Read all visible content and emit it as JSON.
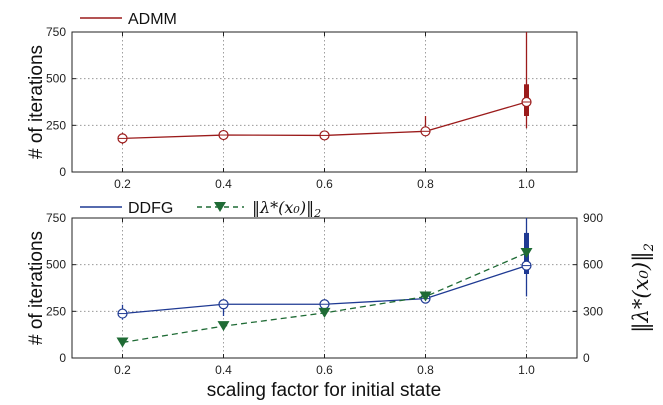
{
  "chart_data": [
    {
      "type": "line",
      "xlabel": "",
      "ylabel": "# of iterations",
      "x": [
        0.2,
        0.4,
        0.6,
        0.8,
        1.0
      ],
      "xtick_labels": [
        "0.2",
        "0.4",
        "0.6",
        "0.8",
        "1.0"
      ],
      "yticks": [
        0,
        250,
        500,
        750
      ],
      "ytick_labels": [
        "0",
        "250",
        "500",
        "750"
      ],
      "ylim": [
        0,
        750
      ],
      "xlim": [
        0.1,
        1.1
      ],
      "grid": true,
      "legend_position": "top-left",
      "series": [
        {
          "name": "ADMM",
          "color": "#9b1b1b",
          "values": [
            180,
            198,
            196,
            218,
            375
          ],
          "whisker_low": [
            150,
            170,
            175,
            190,
            235
          ],
          "whisker_high": [
            210,
            225,
            218,
            300,
            750
          ],
          "box_low": [
            178,
            196,
            194,
            212,
            300
          ],
          "box_high": [
            182,
            200,
            198,
            224,
            470
          ]
        }
      ]
    },
    {
      "type": "line",
      "xlabel": "scaling factor for initial state",
      "ylabel": "# of iterations",
      "y2label": "‖λ*(x₀)‖₂",
      "x": [
        0.2,
        0.4,
        0.6,
        0.8,
        1.0
      ],
      "xtick_labels": [
        "0.2",
        "0.4",
        "0.6",
        "0.8",
        "1.0"
      ],
      "yticks": [
        0,
        250,
        500,
        750
      ],
      "ytick_labels": [
        "0",
        "250",
        "500",
        "750"
      ],
      "ylim": [
        0,
        750
      ],
      "y2ticks": [
        0,
        300,
        600,
        900
      ],
      "y2tick_labels": [
        "0",
        "300",
        "600",
        "900"
      ],
      "y2lim": [
        0,
        900
      ],
      "xlim": [
        0.1,
        1.1
      ],
      "grid": true,
      "legend_position": "top-left",
      "series": [
        {
          "name": "DDFG",
          "axis": "left",
          "color": "#1f3a93",
          "values": [
            238,
            288,
            288,
            318,
            495
          ],
          "whisker_low": [
            205,
            225,
            268,
            300,
            330
          ],
          "whisker_high": [
            285,
            300,
            298,
            340,
            750
          ],
          "box_low": [
            232,
            284,
            284,
            312,
            450
          ],
          "box_high": [
            244,
            292,
            292,
            325,
            670
          ]
        },
        {
          "name": "‖λ*(x₀)‖₂",
          "axis": "right",
          "color": "#1f6b35",
          "linestyle": "dashed",
          "marker": "triangle-down",
          "values": [
            100,
            205,
            290,
            395,
            675
          ]
        }
      ]
    }
  ],
  "legend": {
    "top_series": "ADMM",
    "bottom_series1": "DDFG",
    "bottom_series2_norm": "‖",
    "bottom_series2_body": "λ*(x₀)",
    "bottom_series2_sub": "2"
  },
  "axes": {
    "top_ylabel": "# of iterations",
    "bottom_ylabel": "# of iterations",
    "bottom_xlabel": "scaling factor for initial state",
    "right_ylabel_body": "‖λ*(x₀)‖",
    "right_ylabel_sub": "2"
  }
}
